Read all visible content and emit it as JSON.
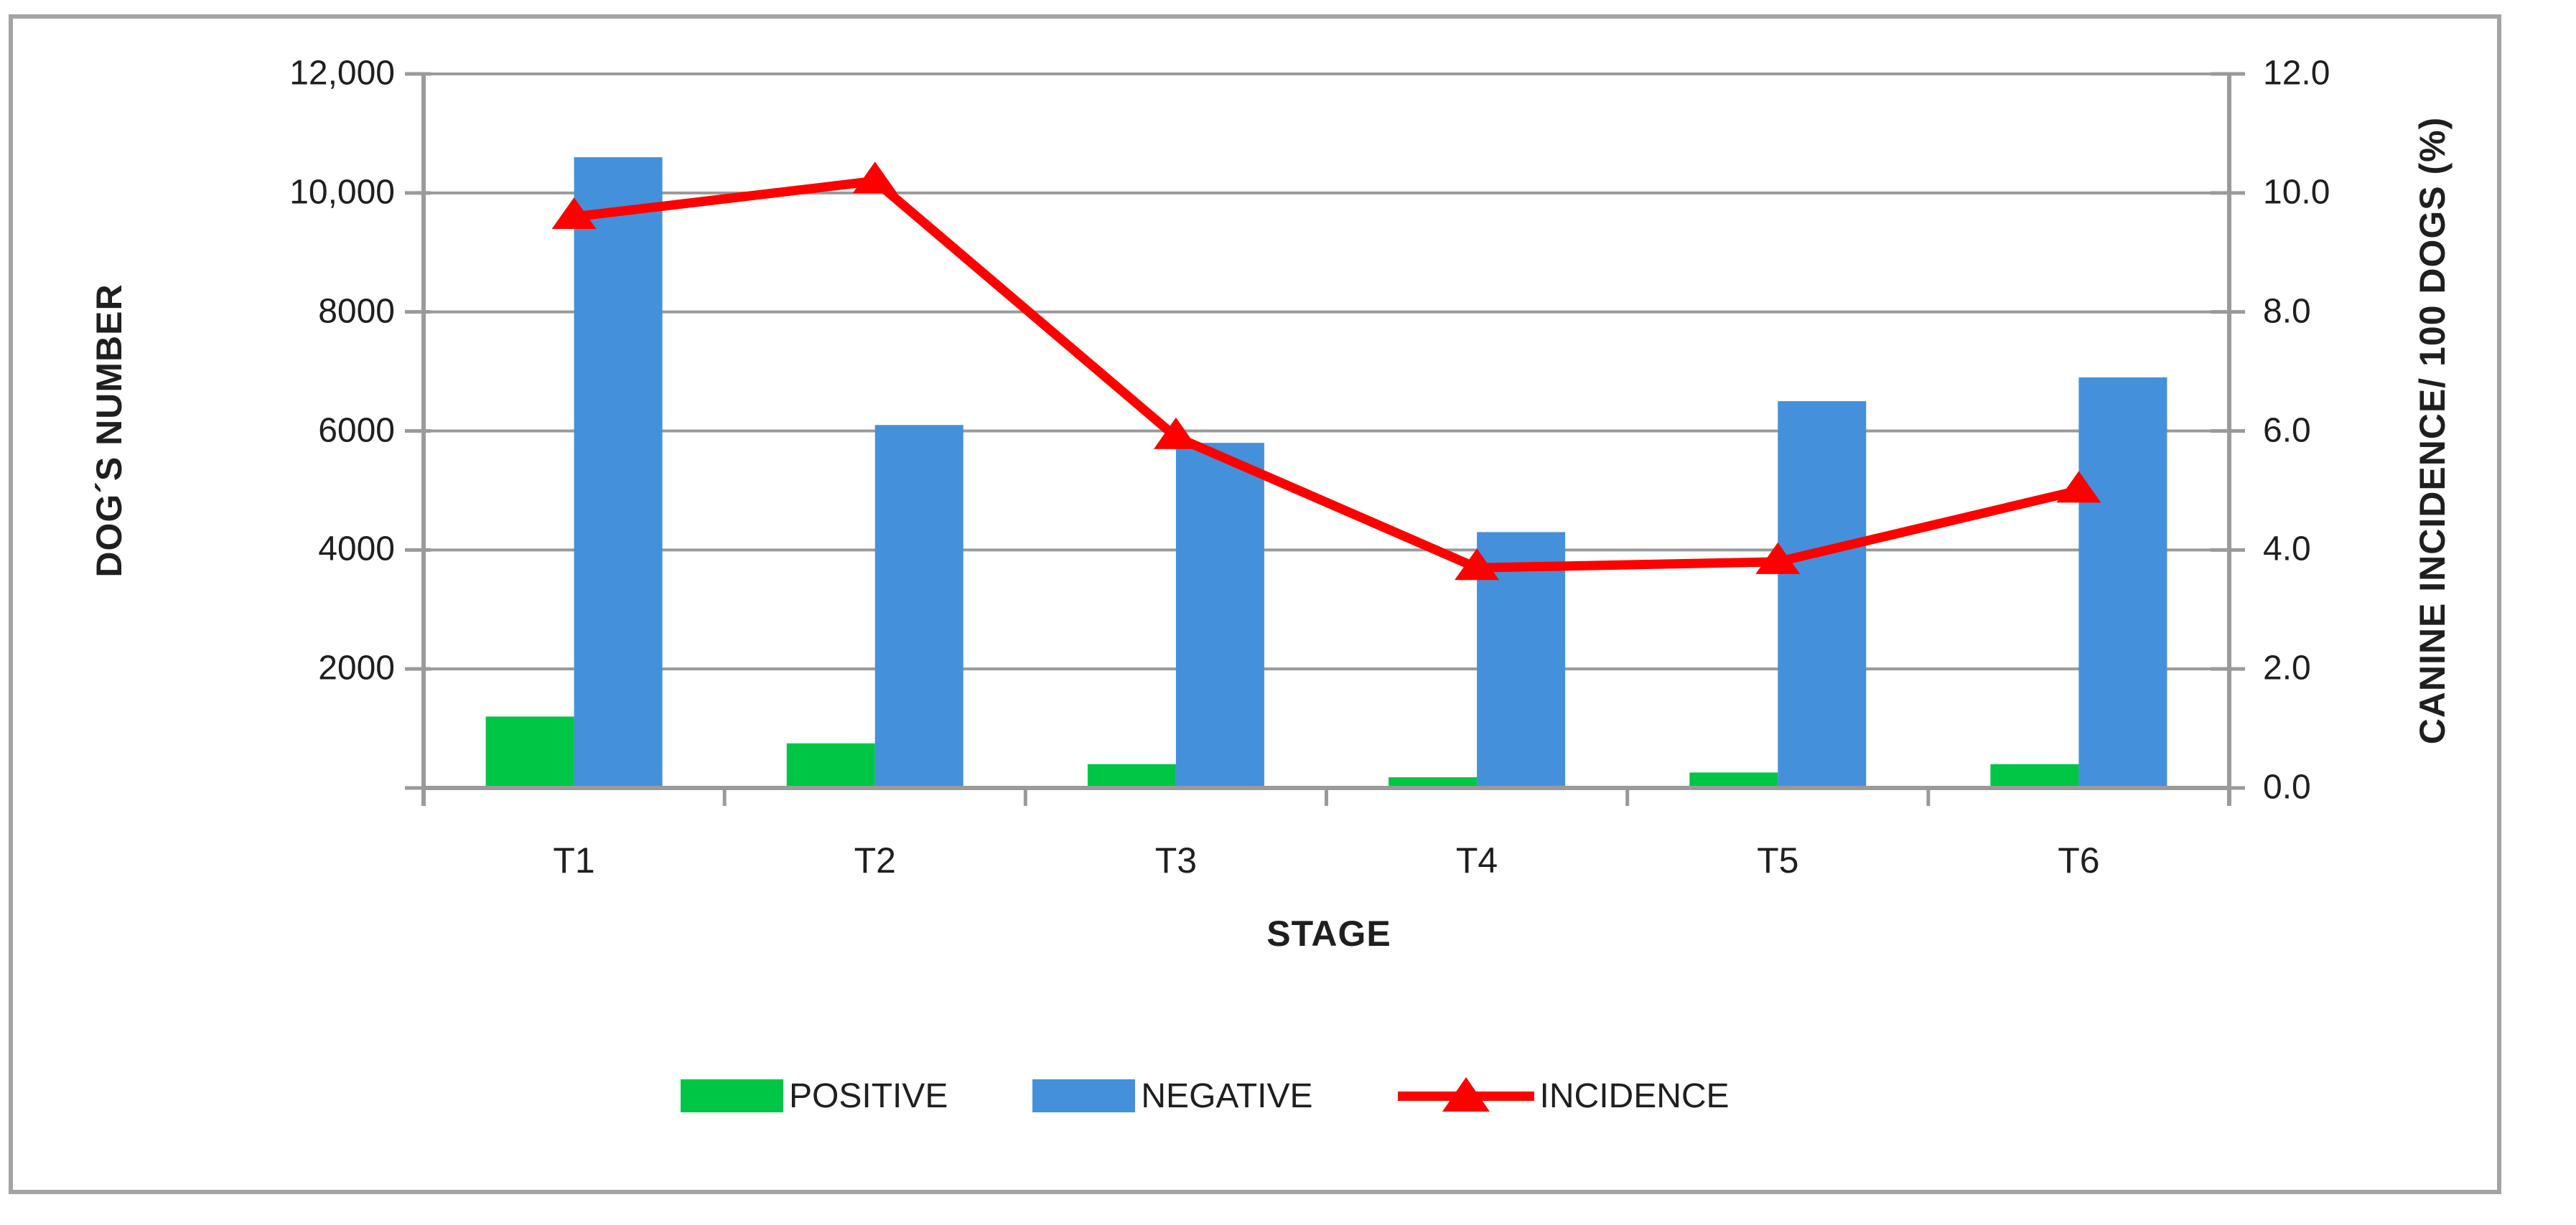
{
  "figure_type": "combination bar and line chart",
  "chart_data": {
    "type": "bar+line",
    "categories": [
      "T1",
      "T2",
      "T3",
      "T4",
      "T5",
      "T6"
    ],
    "series": [
      {
        "name": "POSITIVE",
        "type": "bar",
        "axis": "left",
        "color": "#00C646",
        "values": [
          1200,
          750,
          400,
          180,
          260,
          400
        ]
      },
      {
        "name": "NEGATIVE",
        "type": "bar",
        "axis": "left",
        "color": "#4490DB",
        "values": [
          10600,
          6100,
          5800,
          4300,
          6500,
          6900
        ]
      },
      {
        "name": "INCIDENCE",
        "type": "line",
        "axis": "right",
        "color": "#FF0000",
        "values": [
          9.6,
          10.2,
          5.9,
          3.7,
          3.8,
          5.0
        ]
      }
    ],
    "left_axis": {
      "title": "DOG´S NUMBER",
      "tick_labels": [
        "12,000",
        "10,000",
        "8000",
        "6000",
        "4000",
        "2000"
      ],
      "tick_values": [
        12000,
        10000,
        8000,
        6000,
        4000,
        2000
      ],
      "range": [
        0,
        12000
      ]
    },
    "right_axis": {
      "title": "CANINE INCIDENCE/ 100 DOGS (%)",
      "tick_labels": [
        "12.0",
        "10.0",
        "8.0",
        "6.0",
        "4.0",
        "2.0",
        "0.0"
      ],
      "tick_values": [
        12,
        10,
        8,
        6,
        4,
        2,
        0
      ],
      "range": [
        0,
        12
      ]
    },
    "x_axis": {
      "title": "STAGE"
    },
    "grid": true,
    "legend_position": "bottom",
    "colors": {
      "gridline": "#9a9a9a",
      "axis": "#9a9a9a",
      "frame_border": "#a3a3a3",
      "text": "#1f1f1f"
    }
  }
}
